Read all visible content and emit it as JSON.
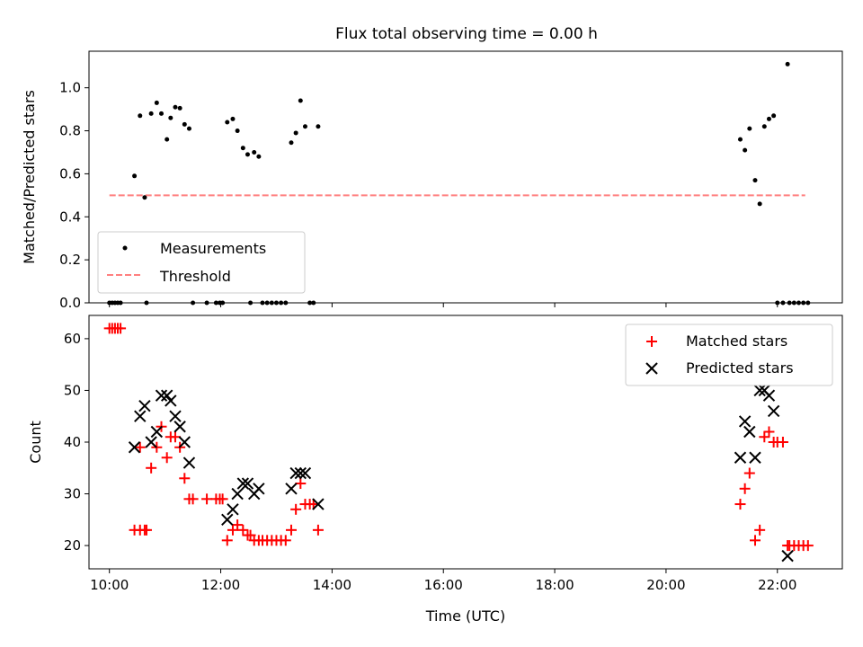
{
  "chart_data": [
    {
      "type": "scatter",
      "title": "Flux total observing time = 0.00 h",
      "xlabel": "",
      "ylabel": "Matched/Predicted stars",
      "xlim": [
        "09:38",
        "23:10"
      ],
      "ylim": [
        0,
        1.17
      ],
      "x_ticks": [
        "10:00",
        "12:00",
        "14:00",
        "16:00",
        "18:00",
        "20:00",
        "22:00"
      ],
      "y_ticks": [
        "0.0",
        "0.2",
        "0.4",
        "0.6",
        "0.8",
        "1.0"
      ],
      "grid": false,
      "legend_position": "lower-left",
      "legend": [
        {
          "label": "Measurements",
          "marker": "dot",
          "color": "#000000"
        },
        {
          "label": "Threshold",
          "marker": "dashed-line",
          "color": "#ff7f7f"
        }
      ],
      "threshold": {
        "y": 0.5,
        "x_range": [
          "10:00",
          "22:30"
        ],
        "color": "#ff7f7f"
      },
      "series": [
        {
          "name": "Measurements",
          "color": "#000000",
          "points": [
            [
              "10:00",
              0
            ],
            [
              "10:03",
              0
            ],
            [
              "10:06",
              0
            ],
            [
              "10:09",
              0
            ],
            [
              "10:12",
              0
            ],
            [
              "10:27",
              0.59
            ],
            [
              "10:33",
              0.87
            ],
            [
              "10:38",
              0.49
            ],
            [
              "10:40",
              0
            ],
            [
              "10:45",
              0.88
            ],
            [
              "10:51",
              0.93
            ],
            [
              "10:56",
              0.88
            ],
            [
              "11:02",
              0.76
            ],
            [
              "11:06",
              0.86
            ],
            [
              "11:11",
              0.91
            ],
            [
              "11:16",
              0.905
            ],
            [
              "11:21",
              0.83
            ],
            [
              "11:26",
              0.81
            ],
            [
              "11:30",
              0
            ],
            [
              "11:45",
              0
            ],
            [
              "11:55",
              0
            ],
            [
              "11:59",
              0
            ],
            [
              "12:02",
              0
            ],
            [
              "12:07",
              0.84
            ],
            [
              "12:13",
              0.855
            ],
            [
              "12:18",
              0.8
            ],
            [
              "12:24",
              0.72
            ],
            [
              "12:29",
              0.69
            ],
            [
              "12:32",
              0
            ],
            [
              "12:36",
              0.7
            ],
            [
              "12:41",
              0.68
            ],
            [
              "12:45",
              0
            ],
            [
              "12:50",
              0
            ],
            [
              "12:55",
              0
            ],
            [
              "13:00",
              0
            ],
            [
              "13:05",
              0
            ],
            [
              "13:10",
              0
            ],
            [
              "13:16",
              0.745
            ],
            [
              "13:21",
              0.79
            ],
            [
              "13:26",
              0.94
            ],
            [
              "13:31",
              0.82
            ],
            [
              "13:36",
              0
            ],
            [
              "13:40",
              0
            ],
            [
              "13:45",
              0.82
            ],
            [
              "21:20",
              0.76
            ],
            [
              "21:25",
              0.71
            ],
            [
              "21:30",
              0.81
            ],
            [
              "21:36",
              0.57
            ],
            [
              "21:41",
              0.46
            ],
            [
              "21:46",
              0.82
            ],
            [
              "21:51",
              0.855
            ],
            [
              "21:56",
              0.87
            ],
            [
              "22:00",
              0
            ],
            [
              "22:06",
              0
            ],
            [
              "22:11",
              1.11
            ],
            [
              "22:13",
              0
            ],
            [
              "22:18",
              0
            ],
            [
              "22:23",
              0
            ],
            [
              "22:28",
              0
            ],
            [
              "22:33",
              0
            ]
          ]
        }
      ]
    },
    {
      "type": "scatter",
      "title": "",
      "xlabel": "Time (UTC)",
      "ylabel": "Count",
      "xlim": [
        "09:38",
        "23:10"
      ],
      "ylim": [
        15.5,
        64.5
      ],
      "x_ticks": [
        "10:00",
        "12:00",
        "14:00",
        "16:00",
        "18:00",
        "20:00",
        "22:00"
      ],
      "y_ticks": [
        "20",
        "30",
        "40",
        "50",
        "60"
      ],
      "grid": false,
      "legend_position": "upper-right",
      "legend": [
        {
          "label": "Matched stars",
          "marker": "plus",
          "color": "#ff0000"
        },
        {
          "label": "Predicted stars",
          "marker": "x",
          "color": "#000000"
        }
      ],
      "series": [
        {
          "name": "Matched stars",
          "color": "#ff0000",
          "marker": "plus",
          "points": [
            [
              "10:00",
              62
            ],
            [
              "10:03",
              62
            ],
            [
              "10:06",
              62
            ],
            [
              "10:09",
              62
            ],
            [
              "10:12",
              62
            ],
            [
              "10:27",
              23
            ],
            [
              "10:33",
              39
            ],
            [
              "10:33",
              23
            ],
            [
              "10:38",
              23
            ],
            [
              "10:40",
              23
            ],
            [
              "10:45",
              35
            ],
            [
              "10:51",
              39
            ],
            [
              "10:56",
              43
            ],
            [
              "11:02",
              37
            ],
            [
              "11:06",
              41
            ],
            [
              "11:11",
              41
            ],
            [
              "11:16",
              39
            ],
            [
              "11:21",
              33
            ],
            [
              "11:26",
              29
            ],
            [
              "11:30",
              29
            ],
            [
              "11:45",
              29
            ],
            [
              "11:55",
              29
            ],
            [
              "11:59",
              29
            ],
            [
              "12:02",
              29
            ],
            [
              "12:07",
              21
            ],
            [
              "12:13",
              23
            ],
            [
              "12:18",
              24
            ],
            [
              "12:24",
              23
            ],
            [
              "12:29",
              22
            ],
            [
              "12:32",
              22
            ],
            [
              "12:36",
              21
            ],
            [
              "12:41",
              21
            ],
            [
              "12:45",
              21
            ],
            [
              "12:50",
              21
            ],
            [
              "12:55",
              21
            ],
            [
              "13:00",
              21
            ],
            [
              "13:05",
              21
            ],
            [
              "13:10",
              21
            ],
            [
              "13:16",
              23
            ],
            [
              "13:21",
              27
            ],
            [
              "13:26",
              32
            ],
            [
              "13:31",
              28
            ],
            [
              "13:36",
              28
            ],
            [
              "13:40",
              28
            ],
            [
              "13:45",
              23
            ],
            [
              "21:20",
              28
            ],
            [
              "21:25",
              31
            ],
            [
              "21:30",
              34
            ],
            [
              "21:36",
              21
            ],
            [
              "21:41",
              23
            ],
            [
              "21:46",
              41
            ],
            [
              "21:51",
              42
            ],
            [
              "21:56",
              40
            ],
            [
              "22:00",
              40
            ],
            [
              "22:06",
              40
            ],
            [
              "22:11",
              20
            ],
            [
              "22:13",
              20
            ],
            [
              "22:18",
              20
            ],
            [
              "22:23",
              20
            ],
            [
              "22:28",
              20
            ],
            [
              "22:33",
              20
            ]
          ]
        },
        {
          "name": "Predicted stars",
          "color": "#000000",
          "marker": "x",
          "points": [
            [
              "10:27",
              39
            ],
            [
              "10:33",
              45
            ],
            [
              "10:38",
              47
            ],
            [
              "10:45",
              40
            ],
            [
              "10:51",
              42
            ],
            [
              "10:56",
              49
            ],
            [
              "11:02",
              49
            ],
            [
              "11:06",
              48
            ],
            [
              "11:11",
              45
            ],
            [
              "11:16",
              43
            ],
            [
              "11:21",
              40
            ],
            [
              "11:26",
              36
            ],
            [
              "12:07",
              25
            ],
            [
              "12:13",
              27
            ],
            [
              "12:18",
              30
            ],
            [
              "12:24",
              32
            ],
            [
              "12:29",
              32
            ],
            [
              "12:36",
              30
            ],
            [
              "12:41",
              31
            ],
            [
              "13:16",
              31
            ],
            [
              "13:21",
              34
            ],
            [
              "13:26",
              34
            ],
            [
              "13:31",
              34
            ],
            [
              "13:45",
              28
            ],
            [
              "21:20",
              37
            ],
            [
              "21:25",
              44
            ],
            [
              "21:30",
              42
            ],
            [
              "21:36",
              37
            ],
            [
              "21:41",
              50
            ],
            [
              "21:46",
              50
            ],
            [
              "21:51",
              49
            ],
            [
              "21:56",
              46
            ],
            [
              "22:11",
              18
            ]
          ]
        }
      ]
    }
  ]
}
